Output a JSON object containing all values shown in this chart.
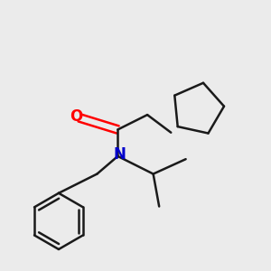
{
  "bg_color": "#ebebeb",
  "bond_color": "#1a1a1a",
  "oxygen_color": "#ff0000",
  "nitrogen_color": "#0000cc",
  "line_width": 1.8
}
